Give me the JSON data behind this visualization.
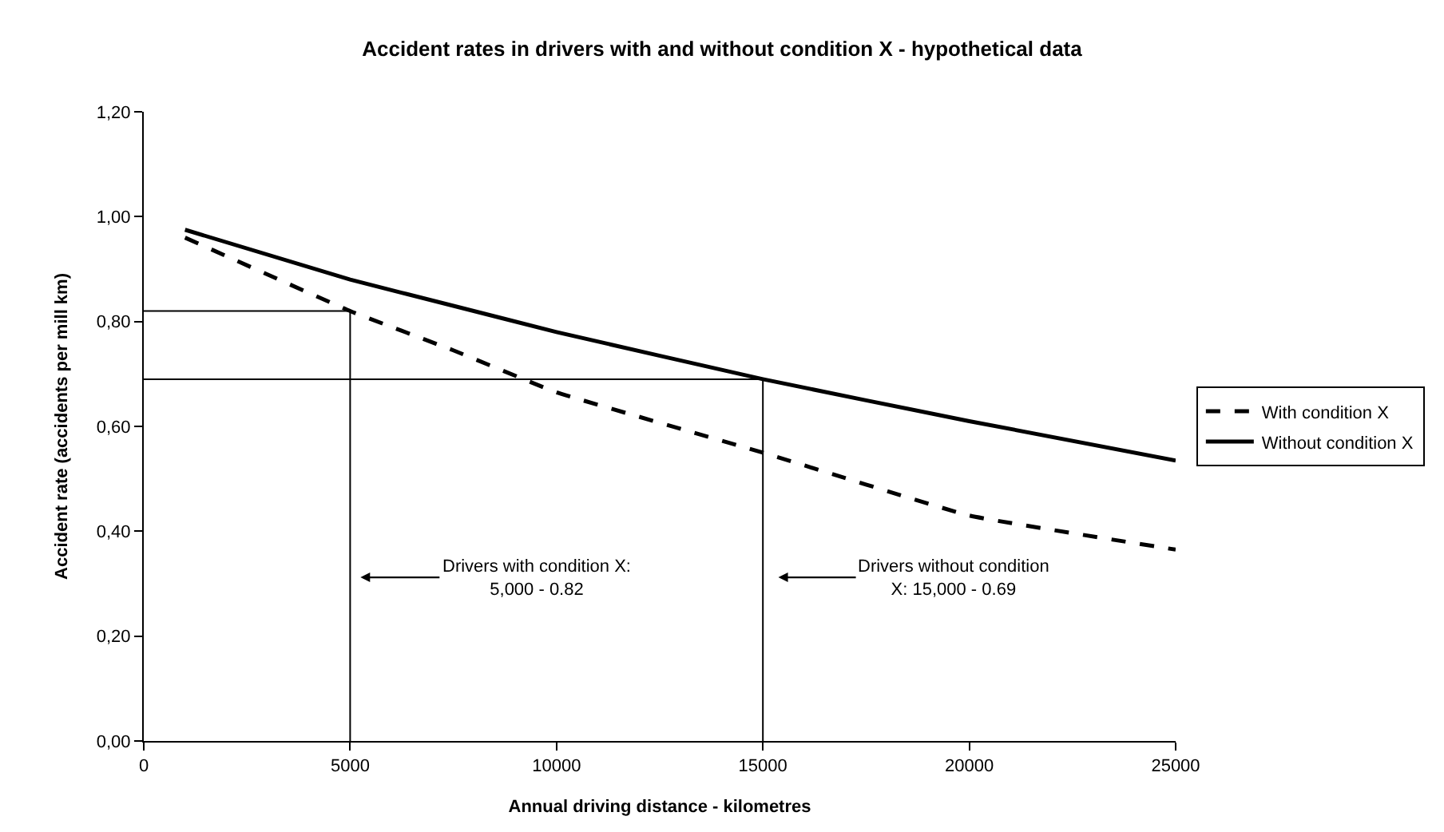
{
  "chart_data": {
    "type": "line",
    "title": "Accident rates in drivers with and without condition X - hypothetical data",
    "xlabel": "Annual driving distance - kilometres",
    "ylabel": "Accident rate (accidents per mill km)",
    "xlim": [
      0,
      25000
    ],
    "xticks": [
      0,
      5000,
      10000,
      15000,
      20000,
      25000
    ],
    "ylim": [
      0,
      1.2
    ],
    "yticks": [
      {
        "value": 0,
        "label": "0,00"
      },
      {
        "value": 0.2,
        "label": "0,20"
      },
      {
        "value": 0.4,
        "label": "0,40"
      },
      {
        "value": 0.6,
        "label": "0,60"
      },
      {
        "value": 0.8,
        "label": "0,80"
      },
      {
        "value": 1.0,
        "label": "1,00"
      },
      {
        "value": 1.2,
        "label": "1,20"
      }
    ],
    "legend": "right",
    "marker": "none",
    "series": [
      {
        "name": "With condition X",
        "color": "#000000",
        "line_style": "dashed",
        "x": [
          1000,
          5000,
          7500,
          10000,
          15000,
          20000,
          25000
        ],
        "values": [
          0.96,
          0.82,
          0.745,
          0.665,
          0.55,
          0.43,
          0.365
        ]
      },
      {
        "name": "Without condition X",
        "color": "#000000",
        "line_style": "solid",
        "x": [
          1000,
          5000,
          7500,
          10000,
          15000,
          20000,
          25000
        ],
        "values": [
          0.975,
          0.88,
          0.83,
          0.78,
          0.69,
          0.61,
          0.535
        ]
      },
      {
        "color": "#000000",
        "line_style": "solid",
        "x": [
          0,
          5000,
          5000
        ],
        "values": [
          0.82,
          0.82,
          0
        ]
      },
      {
        "color": "#000000",
        "line_style": "solid",
        "x": [
          0,
          15000,
          15000
        ],
        "values": [
          0.69,
          0.69,
          0
        ]
      }
    ],
    "annotations": [
      "Drivers with condition X:\n5,000 - 0.82",
      "Drivers without condition\nX: 15,000 - 0.69"
    ]
  }
}
